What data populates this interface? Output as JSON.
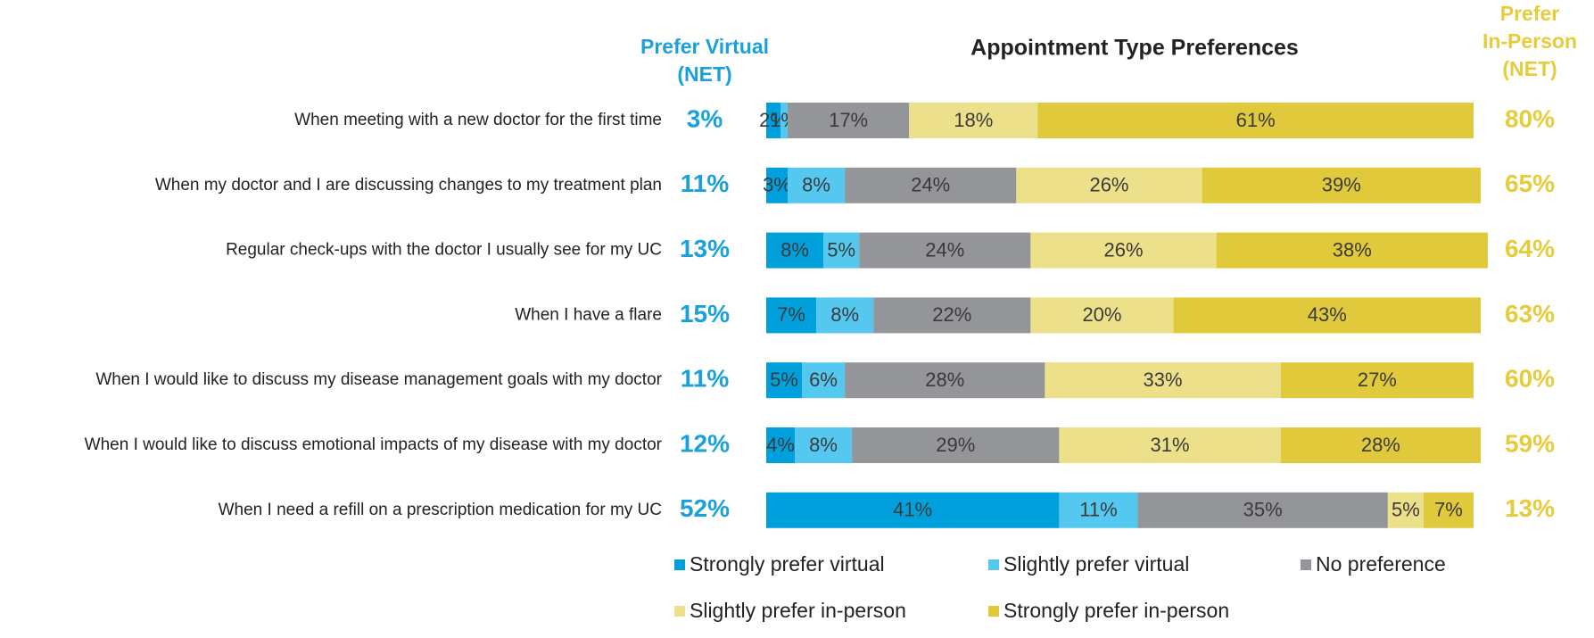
{
  "chart_data": {
    "type": "bar",
    "orientation": "horizontal",
    "stacked": true,
    "title": "Appointment Type Preferences",
    "categories": [
      "When meeting with a new doctor for the first time",
      "When my doctor and I are discussing changes to my treatment plan",
      "Regular check-ups with the doctor I usually see for my UC",
      "When I have a flare",
      "When I would like to discuss my disease management goals with my doctor",
      "When I would like to discuss emotional impacts of my disease with my doctor",
      "When I need a refill on a prescription medication for my UC"
    ],
    "xlim": [
      0,
      100
    ],
    "series": [
      {
        "name": "Strongly prefer virtual",
        "color": "#00a0dc",
        "values": [
          2,
          3,
          8,
          7,
          5,
          4,
          41
        ],
        "value_labels": [
          "2%",
          "3%",
          "8%",
          "7%",
          "5%",
          "4%",
          "41%"
        ]
      },
      {
        "name": "Slightly prefer virtual",
        "color": "#55c8f0",
        "values": [
          1,
          8,
          5,
          8,
          6,
          8,
          11
        ],
        "value_labels": [
          "1%",
          "8%",
          "5%",
          "8%",
          "6%",
          "8%",
          "11%"
        ]
      },
      {
        "name": "No preference",
        "color": "#939598",
        "values": [
          17,
          24,
          24,
          22,
          28,
          29,
          35
        ],
        "value_labels": [
          "17%",
          "24%",
          "24%",
          "22%",
          "28%",
          "29%",
          "35%"
        ]
      },
      {
        "name": "Slightly prefer in-person",
        "color": "#ede08a",
        "values": [
          18,
          26,
          26,
          20,
          33,
          31,
          5
        ],
        "value_labels": [
          "18%",
          "26%",
          "26%",
          "20%",
          "33%",
          "31%",
          "5%"
        ]
      },
      {
        "name": "Strongly prefer in-person",
        "color": "#e0c93a",
        "values": [
          61,
          39,
          38,
          43,
          27,
          28,
          7
        ],
        "value_labels": [
          "61%",
          "39%",
          "38%",
          "43%",
          "27%",
          "28%",
          "7%"
        ]
      }
    ],
    "virtual_net": {
      "header": [
        "Prefer Virtual",
        "(NET)"
      ],
      "color": "#1aa1db",
      "values": [
        3,
        11,
        13,
        15,
        11,
        12,
        52
      ],
      "value_labels": [
        "3%",
        "11%",
        "13%",
        "15%",
        "11%",
        "12%",
        "52%"
      ]
    },
    "in_person_net": {
      "header": [
        "Prefer",
        "In-Person",
        "(NET)"
      ],
      "color": "#e6cc3b",
      "values": [
        80,
        65,
        64,
        63,
        60,
        59,
        13
      ],
      "value_labels": [
        "80%",
        "65%",
        "64%",
        "63%",
        "60%",
        "59%",
        "13%"
      ]
    }
  }
}
